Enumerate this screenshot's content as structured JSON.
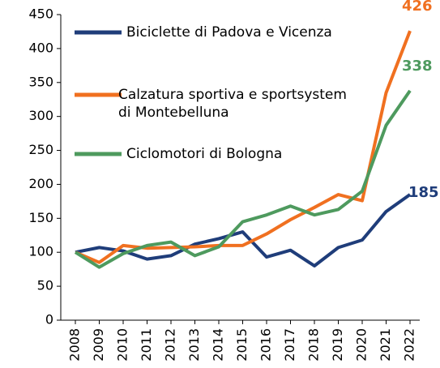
{
  "chart_data": {
    "type": "line",
    "categories": [
      "2008",
      "2009",
      "2010",
      "2011",
      "2012",
      "2013",
      "2014",
      "2015",
      "2016",
      "2017",
      "2018",
      "2019",
      "2020",
      "2021",
      "2022"
    ],
    "series": [
      {
        "name": "Biciclette di Padova e Vicenza",
        "color": "#1f3d7a",
        "values": [
          100,
          107,
          102,
          90,
          95,
          112,
          120,
          130,
          93,
          103,
          80,
          107,
          118,
          160,
          185
        ]
      },
      {
        "name": "Calzatura sportiva e sportsystem di Montebelluna",
        "color": "#f07020",
        "values": [
          100,
          85,
          110,
          106,
          107,
          108,
          110,
          110,
          127,
          148,
          166,
          185,
          176,
          335,
          426
        ]
      },
      {
        "name": "Ciclomotori di Bologna",
        "color": "#4e9a5e",
        "values": [
          100,
          78,
          98,
          110,
          115,
          95,
          108,
          145,
          155,
          168,
          155,
          163,
          190,
          287,
          338
        ]
      }
    ],
    "ylim": [
      0,
      450
    ],
    "yticks": [
      0,
      50,
      100,
      150,
      200,
      250,
      300,
      350,
      400,
      450
    ],
    "grid": false
  }
}
